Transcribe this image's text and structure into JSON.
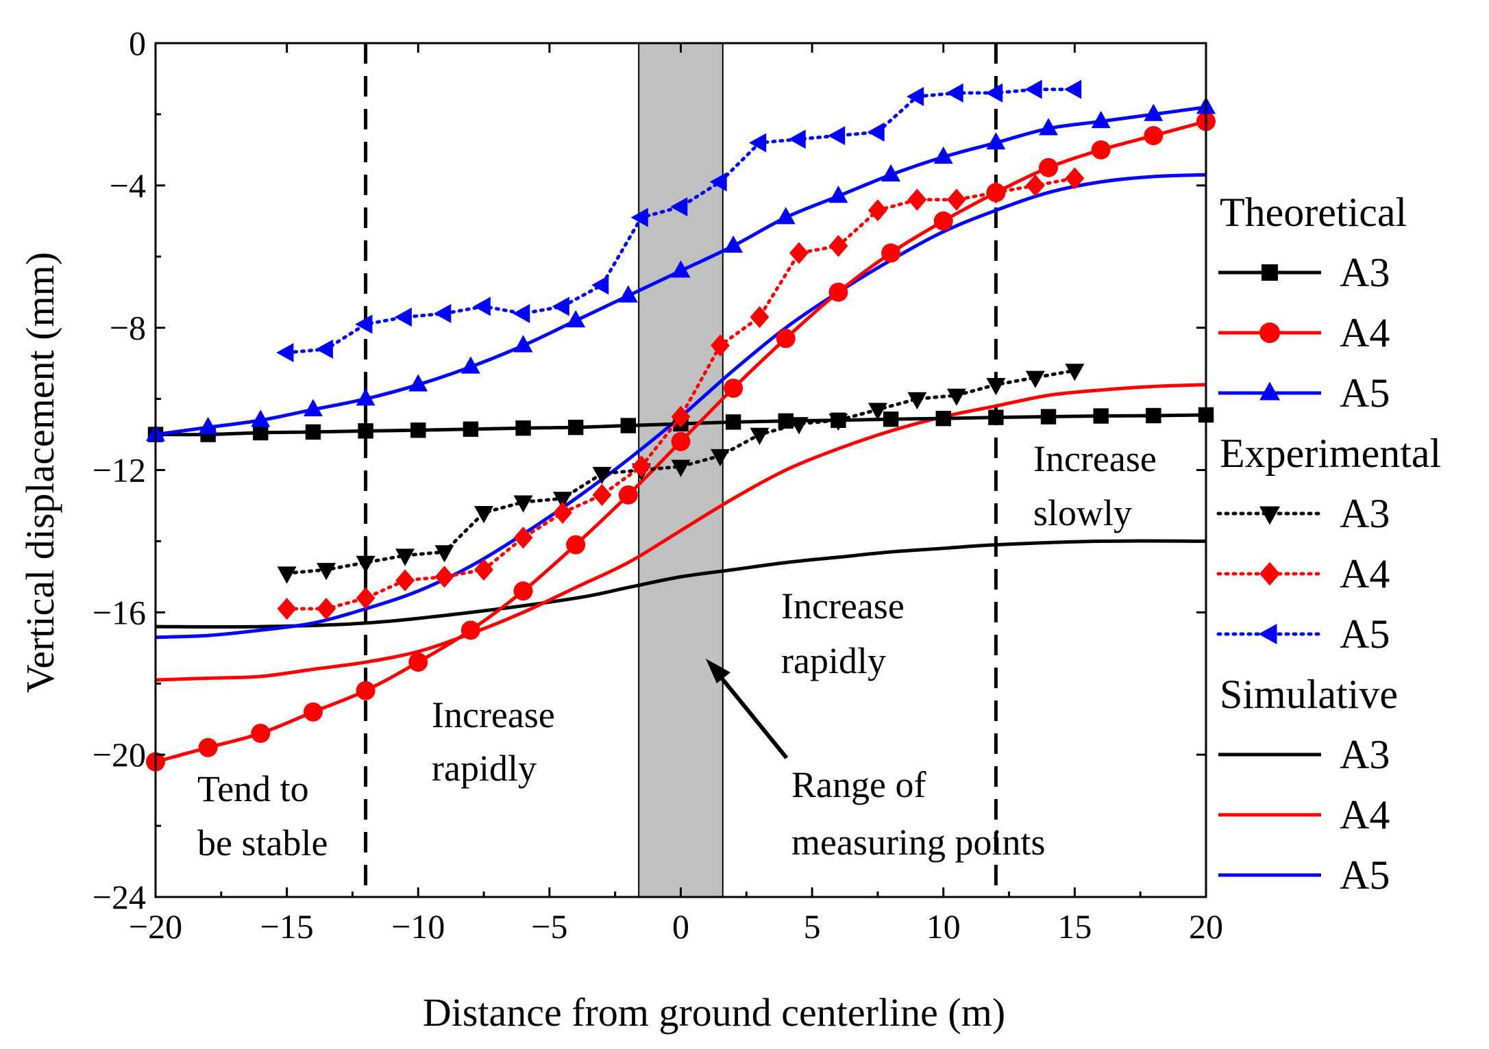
{
  "chart_data": {
    "type": "line",
    "xlabel": "Distance from ground centerline (m)",
    "ylabel": "Vertical displacement (mm)",
    "xlim": [
      -20,
      20
    ],
    "ylim": [
      -24,
      0
    ],
    "xticks": [
      -20,
      -15,
      -10,
      -5,
      0,
      5,
      10,
      15,
      20
    ],
    "yticks": [
      0,
      -4,
      -8,
      -12,
      -16,
      -20,
      -24
    ],
    "xtick_labels": [
      "−20",
      "−15",
      "−10",
      "−5",
      "0",
      "5",
      "10",
      "15",
      "20"
    ],
    "ytick_labels": [
      "0",
      "−4",
      "−8",
      "−12",
      "−16",
      "−20",
      "−24"
    ],
    "reference_lines_x": [
      -12,
      12
    ],
    "shaded_region_x": [
      -1.6,
      1.6
    ],
    "series": [
      {
        "group": "Theoretical",
        "name": "A3",
        "color": "#000000",
        "style": "solid",
        "marker": "square",
        "x": [
          -20,
          -18,
          -16,
          -14,
          -12,
          -10,
          -8,
          -6,
          -4,
          -2,
          0,
          2,
          4,
          6,
          8,
          10,
          12,
          14,
          16,
          18,
          20
        ],
        "y": [
          -11.0,
          -11.0,
          -10.95,
          -10.93,
          -10.9,
          -10.88,
          -10.85,
          -10.82,
          -10.8,
          -10.75,
          -10.7,
          -10.65,
          -10.62,
          -10.6,
          -10.57,
          -10.55,
          -10.52,
          -10.5,
          -10.48,
          -10.47,
          -10.45
        ]
      },
      {
        "group": "Theoretical",
        "name": "A4",
        "color": "#ff0000",
        "style": "solid",
        "marker": "circle",
        "x": [
          -20,
          -18,
          -16,
          -14,
          -12,
          -10,
          -8,
          -6,
          -4,
          -2,
          0,
          2,
          4,
          6,
          8,
          10,
          12,
          14,
          16,
          18,
          20
        ],
        "y": [
          -20.2,
          -19.8,
          -19.4,
          -18.8,
          -18.2,
          -17.4,
          -16.5,
          -15.4,
          -14.1,
          -12.7,
          -11.2,
          -9.7,
          -8.3,
          -7.0,
          -5.9,
          -5.0,
          -4.2,
          -3.5,
          -3.0,
          -2.6,
          -2.2
        ]
      },
      {
        "group": "Theoretical",
        "name": "A5",
        "color": "#0000ff",
        "style": "solid",
        "marker": "triangle-up",
        "x": [
          -20,
          -18,
          -16,
          -14,
          -12,
          -10,
          -8,
          -6,
          -4,
          -2,
          0,
          2,
          4,
          6,
          8,
          10,
          12,
          14,
          16,
          18,
          20
        ],
        "y": [
          -11.0,
          -10.8,
          -10.6,
          -10.3,
          -10.0,
          -9.6,
          -9.1,
          -8.5,
          -7.8,
          -7.1,
          -6.4,
          -5.7,
          -4.9,
          -4.3,
          -3.7,
          -3.2,
          -2.8,
          -2.4,
          -2.2,
          -2.0,
          -1.8
        ]
      },
      {
        "group": "Experimental",
        "name": "A3",
        "color": "#000000",
        "style": "dotted",
        "marker": "triangle-down",
        "x": [
          -15,
          -13.5,
          -12,
          -10.5,
          -9,
          -7.5,
          -6,
          -4.5,
          -3,
          -1.5,
          0,
          1.5,
          3,
          4.5,
          6,
          7.5,
          9,
          10.5,
          12,
          13.5,
          15
        ],
        "y": [
          -14.9,
          -14.8,
          -14.6,
          -14.4,
          -14.3,
          -13.2,
          -12.9,
          -12.8,
          -12.1,
          -12.0,
          -11.9,
          -11.6,
          -11.0,
          -10.7,
          -10.6,
          -10.3,
          -10.0,
          -9.9,
          -9.6,
          -9.4,
          -9.2
        ]
      },
      {
        "group": "Experimental",
        "name": "A4",
        "color": "#ff0000",
        "style": "dotted",
        "marker": "diamond",
        "x": [
          -15,
          -13.5,
          -12,
          -10.5,
          -9,
          -7.5,
          -6,
          -4.5,
          -3,
          -1.5,
          0,
          1.5,
          3,
          4.5,
          6,
          7.5,
          9,
          10.5,
          12,
          13.5,
          15
        ],
        "y": [
          -15.9,
          -15.9,
          -15.6,
          -15.1,
          -15.0,
          -14.8,
          -13.9,
          -13.2,
          -12.7,
          -11.9,
          -10.5,
          -8.5,
          -7.7,
          -5.9,
          -5.7,
          -4.7,
          -4.4,
          -4.4,
          -4.2,
          -4.0,
          -3.8
        ]
      },
      {
        "group": "Experimental",
        "name": "A5",
        "color": "#0000ff",
        "style": "dotted",
        "marker": "triangle-left",
        "x": [
          -15,
          -13.5,
          -12,
          -10.5,
          -9,
          -7.5,
          -6,
          -4.5,
          -3,
          -1.5,
          0,
          1.5,
          3,
          4.5,
          6,
          7.5,
          9,
          10.5,
          12,
          13.5,
          15
        ],
        "y": [
          -8.7,
          -8.6,
          -7.9,
          -7.7,
          -7.6,
          -7.4,
          -7.6,
          -7.4,
          -6.8,
          -4.9,
          -4.6,
          -3.9,
          -2.8,
          -2.7,
          -2.6,
          -2.5,
          -1.5,
          -1.4,
          -1.4,
          -1.3,
          -1.3
        ]
      },
      {
        "group": "Simulative",
        "name": "A3",
        "color": "#000000",
        "style": "solid",
        "marker": "none",
        "x": [
          -20,
          -16,
          -12,
          -8,
          -4,
          -2,
          0,
          2,
          4,
          6,
          8,
          10,
          12,
          16,
          20
        ],
        "y": [
          -16.4,
          -16.4,
          -16.3,
          -16.0,
          -15.6,
          -15.3,
          -15.0,
          -14.8,
          -14.6,
          -14.45,
          -14.3,
          -14.2,
          -14.1,
          -14.0,
          -14.0
        ]
      },
      {
        "group": "Simulative",
        "name": "A4",
        "color": "#ff0000",
        "style": "solid",
        "marker": "none",
        "x": [
          -20,
          -18,
          -16,
          -14,
          -12,
          -10,
          -8,
          -6,
          -4,
          -2,
          0,
          2,
          4,
          6,
          8,
          10,
          12,
          14,
          16,
          18,
          20
        ],
        "y": [
          -17.9,
          -17.85,
          -17.8,
          -17.6,
          -17.4,
          -17.1,
          -16.6,
          -16.0,
          -15.3,
          -14.6,
          -13.7,
          -12.8,
          -12.0,
          -11.4,
          -10.9,
          -10.5,
          -10.2,
          -9.9,
          -9.75,
          -9.65,
          -9.6
        ]
      },
      {
        "group": "Simulative",
        "name": "A5",
        "color": "#0000ff",
        "style": "solid",
        "marker": "none",
        "x": [
          -20,
          -18,
          -16,
          -14,
          -12,
          -10,
          -8,
          -6,
          -4,
          -2,
          0,
          2,
          4,
          6,
          8,
          10,
          12,
          14,
          16,
          18,
          20
        ],
        "y": [
          -16.7,
          -16.65,
          -16.5,
          -16.3,
          -15.9,
          -15.4,
          -14.7,
          -13.8,
          -12.8,
          -11.7,
          -10.5,
          -9.2,
          -8.0,
          -7.0,
          -6.1,
          -5.3,
          -4.7,
          -4.2,
          -3.9,
          -3.75,
          -3.7
        ]
      }
    ],
    "annotations": {
      "tend_stable": [
        "Tend to",
        "be stable"
      ],
      "increase_rapidly_left": [
        "Increase",
        "rapidly"
      ],
      "increase_rapidly_right": [
        "Increase",
        "rapidly"
      ],
      "increase_slowly": [
        "Increase",
        "slowly"
      ],
      "range_measuring": [
        "Range of",
        "measuring points"
      ]
    },
    "legend": {
      "placement": "right",
      "groups": [
        "Theoretical",
        "Experimental",
        "Simulative"
      ]
    }
  }
}
